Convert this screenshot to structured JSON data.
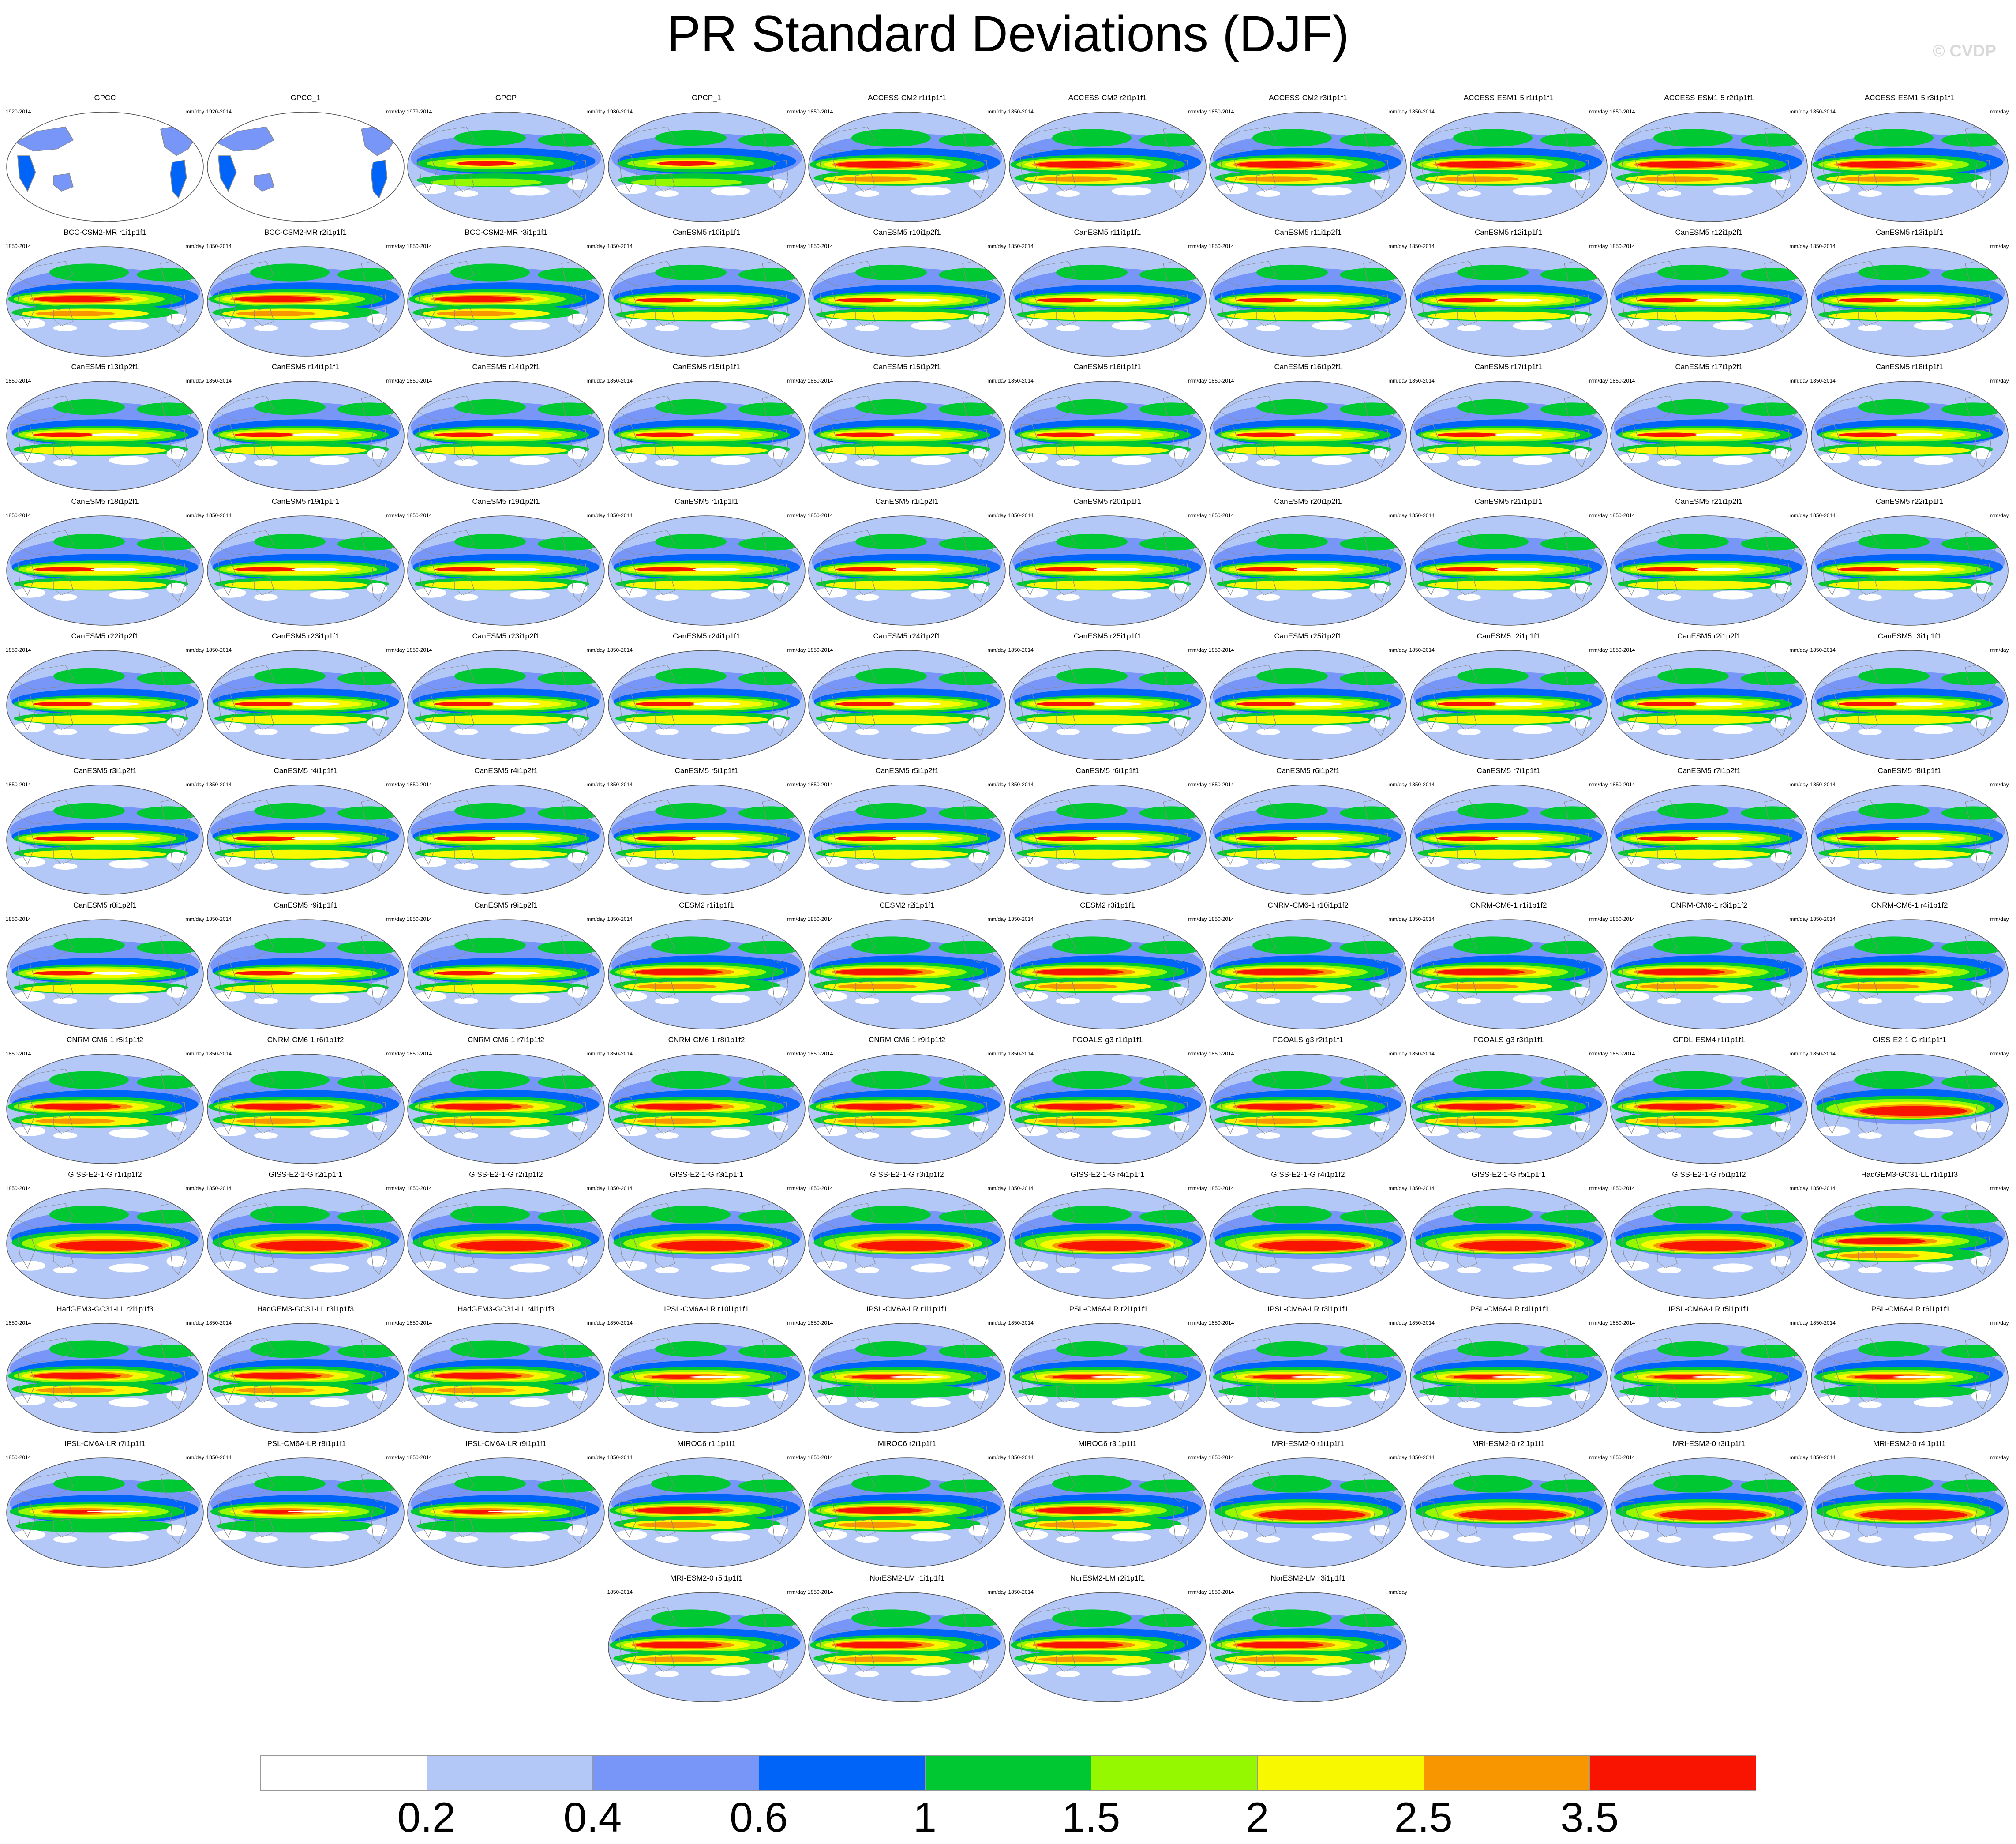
{
  "title": "PR Standard Deviations (DJF)",
  "watermark": "© CVDP",
  "colors": {
    "levels": [
      "#ffffff",
      "#b4c8f8",
      "#7896f8",
      "#0064f8",
      "#00c832",
      "#96f800",
      "#f8f800",
      "#f89600",
      "#f81400"
    ],
    "land_outline": "#888888",
    "map_edge": "#555555"
  },
  "chart_data": {
    "type": "heatmap",
    "title": "PR Standard Deviations (DJF)",
    "colorbar": {
      "tick_labels": [
        "0.2",
        "0.4",
        "0.6",
        "1",
        "1.5",
        "2",
        "2.5",
        "3.5"
      ],
      "bins": 9
    },
    "panels": [
      {
        "name": "GPCC",
        "period": "1920-2014",
        "unit": "mm/day",
        "style": "land"
      },
      {
        "name": "GPCC_1",
        "period": "1920-2014",
        "unit": "mm/day",
        "style": "land"
      },
      {
        "name": "GPCP",
        "period": "1979-2014",
        "unit": "mm/day",
        "style": "obs"
      },
      {
        "name": "GPCP_1",
        "period": "1980-2014",
        "unit": "mm/day",
        "style": "obs"
      },
      {
        "name": "ACCESS-CM2 r1i1p1f1",
        "period": "1850-2014",
        "unit": "mm/day",
        "style": "strong"
      },
      {
        "name": "ACCESS-CM2 r2i1p1f1",
        "period": "1850-2014",
        "unit": "mm/day",
        "style": "strong"
      },
      {
        "name": "ACCESS-CM2 r3i1p1f1",
        "period": "1850-2014",
        "unit": "mm/day",
        "style": "strong"
      },
      {
        "name": "ACCESS-ESM1-5 r1i1p1f1",
        "period": "1850-2014",
        "unit": "mm/day",
        "style": "strong"
      },
      {
        "name": "ACCESS-ESM1-5 r2i1p1f1",
        "period": "1850-2014",
        "unit": "mm/day",
        "style": "strong"
      },
      {
        "name": "ACCESS-ESM1-5 r3i1p1f1",
        "period": "1850-2014",
        "unit": "mm/day",
        "style": "strong"
      },
      {
        "name": "BCC-CSM2-MR r1i1p1f1",
        "period": "1850-2014",
        "unit": "mm/day",
        "style": "strong"
      },
      {
        "name": "BCC-CSM2-MR r2i1p1f1",
        "period": "1850-2014",
        "unit": "mm/day",
        "style": "strong"
      },
      {
        "name": "BCC-CSM2-MR r3i1p1f1",
        "period": "1850-2014",
        "unit": "mm/day",
        "style": "strong"
      },
      {
        "name": "CanESM5 r10i1p1f1",
        "period": "1850-2014",
        "unit": "mm/day",
        "style": "canesm"
      },
      {
        "name": "CanESM5 r10i1p2f1",
        "period": "1850-2014",
        "unit": "mm/day",
        "style": "canesm"
      },
      {
        "name": "CanESM5 r11i1p1f1",
        "period": "1850-2014",
        "unit": "mm/day",
        "style": "canesm"
      },
      {
        "name": "CanESM5 r11i1p2f1",
        "period": "1850-2014",
        "unit": "mm/day",
        "style": "canesm"
      },
      {
        "name": "CanESM5 r12i1p1f1",
        "period": "1850-2014",
        "unit": "mm/day",
        "style": "canesm"
      },
      {
        "name": "CanESM5 r12i1p2f1",
        "period": "1850-2014",
        "unit": "mm/day",
        "style": "canesm"
      },
      {
        "name": "CanESM5 r13i1p1f1",
        "period": "1850-2014",
        "unit": "mm/day",
        "style": "canesm"
      },
      {
        "name": "CanESM5 r13i1p2f1",
        "period": "1850-2014",
        "unit": "mm/day",
        "style": "canesm"
      },
      {
        "name": "CanESM5 r14i1p1f1",
        "period": "1850-2014",
        "unit": "mm/day",
        "style": "canesm"
      },
      {
        "name": "CanESM5 r14i1p2f1",
        "period": "1850-2014",
        "unit": "mm/day",
        "style": "canesm"
      },
      {
        "name": "CanESM5 r15i1p1f1",
        "period": "1850-2014",
        "unit": "mm/day",
        "style": "canesm"
      },
      {
        "name": "CanESM5 r15i1p2f1",
        "period": "1850-2014",
        "unit": "mm/day",
        "style": "canesm"
      },
      {
        "name": "CanESM5 r16i1p1f1",
        "period": "1850-2014",
        "unit": "mm/day",
        "style": "canesm"
      },
      {
        "name": "CanESM5 r16i1p2f1",
        "period": "1850-2014",
        "unit": "mm/day",
        "style": "canesm"
      },
      {
        "name": "CanESM5 r17i1p1f1",
        "period": "1850-2014",
        "unit": "mm/day",
        "style": "canesm"
      },
      {
        "name": "CanESM5 r17i1p2f1",
        "period": "1850-2014",
        "unit": "mm/day",
        "style": "canesm"
      },
      {
        "name": "CanESM5 r18i1p1f1",
        "period": "1850-2014",
        "unit": "mm/day",
        "style": "canesm"
      },
      {
        "name": "CanESM5 r18i1p2f1",
        "period": "1850-2014",
        "unit": "mm/day",
        "style": "canesm"
      },
      {
        "name": "CanESM5 r19i1p1f1",
        "period": "1850-2014",
        "unit": "mm/day",
        "style": "canesm"
      },
      {
        "name": "CanESM5 r19i1p2f1",
        "period": "1850-2014",
        "unit": "mm/day",
        "style": "canesm"
      },
      {
        "name": "CanESM5 r1i1p1f1",
        "period": "1850-2014",
        "unit": "mm/day",
        "style": "canesm"
      },
      {
        "name": "CanESM5 r1i1p2f1",
        "period": "1850-2014",
        "unit": "mm/day",
        "style": "canesm"
      },
      {
        "name": "CanESM5 r20i1p1f1",
        "period": "1850-2014",
        "unit": "mm/day",
        "style": "canesm"
      },
      {
        "name": "CanESM5 r20i1p2f1",
        "period": "1850-2014",
        "unit": "mm/day",
        "style": "canesm"
      },
      {
        "name": "CanESM5 r21i1p1f1",
        "period": "1850-2014",
        "unit": "mm/day",
        "style": "canesm"
      },
      {
        "name": "CanESM5 r21i1p2f1",
        "period": "1850-2014",
        "unit": "mm/day",
        "style": "canesm"
      },
      {
        "name": "CanESM5 r22i1p1f1",
        "period": "1850-2014",
        "unit": "mm/day",
        "style": "canesm"
      },
      {
        "name": "CanESM5 r22i1p2f1",
        "period": "1850-2014",
        "unit": "mm/day",
        "style": "canesm"
      },
      {
        "name": "CanESM5 r23i1p1f1",
        "period": "1850-2014",
        "unit": "mm/day",
        "style": "canesm"
      },
      {
        "name": "CanESM5 r23i1p2f1",
        "period": "1850-2014",
        "unit": "mm/day",
        "style": "canesm"
      },
      {
        "name": "CanESM5 r24i1p1f1",
        "period": "1850-2014",
        "unit": "mm/day",
        "style": "canesm"
      },
      {
        "name": "CanESM5 r24i1p2f1",
        "period": "1850-2014",
        "unit": "mm/day",
        "style": "canesm"
      },
      {
        "name": "CanESM5 r25i1p1f1",
        "period": "1850-2014",
        "unit": "mm/day",
        "style": "canesm"
      },
      {
        "name": "CanESM5 r25i1p2f1",
        "period": "1850-2014",
        "unit": "mm/day",
        "style": "canesm"
      },
      {
        "name": "CanESM5 r2i1p1f1",
        "period": "1850-2014",
        "unit": "mm/day",
        "style": "canesm"
      },
      {
        "name": "CanESM5 r2i1p2f1",
        "period": "1850-2014",
        "unit": "mm/day",
        "style": "canesm"
      },
      {
        "name": "CanESM5 r3i1p1f1",
        "period": "1850-2014",
        "unit": "mm/day",
        "style": "canesm"
      },
      {
        "name": "CanESM5 r3i1p2f1",
        "period": "1850-2014",
        "unit": "mm/day",
        "style": "canesm"
      },
      {
        "name": "CanESM5 r4i1p1f1",
        "period": "1850-2014",
        "unit": "mm/day",
        "style": "canesm"
      },
      {
        "name": "CanESM5 r4i1p2f1",
        "period": "1850-2014",
        "unit": "mm/day",
        "style": "canesm"
      },
      {
        "name": "CanESM5 r5i1p1f1",
        "period": "1850-2014",
        "unit": "mm/day",
        "style": "canesm"
      },
      {
        "name": "CanESM5 r5i1p2f1",
        "period": "1850-2014",
        "unit": "mm/day",
        "style": "canesm"
      },
      {
        "name": "CanESM5 r6i1p1f1",
        "period": "1850-2014",
        "unit": "mm/day",
        "style": "canesm"
      },
      {
        "name": "CanESM5 r6i1p2f1",
        "period": "1850-2014",
        "unit": "mm/day",
        "style": "canesm"
      },
      {
        "name": "CanESM5 r7i1p1f1",
        "period": "1850-2014",
        "unit": "mm/day",
        "style": "canesm"
      },
      {
        "name": "CanESM5 r7i1p2f1",
        "period": "1850-2014",
        "unit": "mm/day",
        "style": "canesm"
      },
      {
        "name": "CanESM5 r8i1p1f1",
        "period": "1850-2014",
        "unit": "mm/day",
        "style": "canesm"
      },
      {
        "name": "CanESM5 r8i1p2f1",
        "period": "1850-2014",
        "unit": "mm/day",
        "style": "canesm"
      },
      {
        "name": "CanESM5 r9i1p1f1",
        "period": "1850-2014",
        "unit": "mm/day",
        "style": "canesm"
      },
      {
        "name": "CanESM5 r9i1p2f1",
        "period": "1850-2014",
        "unit": "mm/day",
        "style": "canesm"
      },
      {
        "name": "CESM2 r1i1p1f1",
        "period": "1850-2014",
        "unit": "mm/day",
        "style": "strong"
      },
      {
        "name": "CESM2 r2i1p1f1",
        "period": "1850-2014",
        "unit": "mm/day",
        "style": "strong"
      },
      {
        "name": "CESM2 r3i1p1f1",
        "period": "1850-2014",
        "unit": "mm/day",
        "style": "strong"
      },
      {
        "name": "CNRM-CM6-1 r10i1p1f2",
        "period": "1850-2014",
        "unit": "mm/day",
        "style": "strong"
      },
      {
        "name": "CNRM-CM6-1 r1i1p1f2",
        "period": "1850-2014",
        "unit": "mm/day",
        "style": "strong"
      },
      {
        "name": "CNRM-CM6-1 r3i1p1f2",
        "period": "1850-2014",
        "unit": "mm/day",
        "style": "strong"
      },
      {
        "name": "CNRM-CM6-1 r4i1p1f2",
        "period": "1850-2014",
        "unit": "mm/day",
        "style": "strong"
      },
      {
        "name": "CNRM-CM6-1 r5i1p1f2",
        "period": "1850-2014",
        "unit": "mm/day",
        "style": "strong"
      },
      {
        "name": "CNRM-CM6-1 r6i1p1f2",
        "period": "1850-2014",
        "unit": "mm/day",
        "style": "strong"
      },
      {
        "name": "CNRM-CM6-1 r7i1p1f2",
        "period": "1850-2014",
        "unit": "mm/day",
        "style": "strong"
      },
      {
        "name": "CNRM-CM6-1 r8i1p1f2",
        "period": "1850-2014",
        "unit": "mm/day",
        "style": "strong"
      },
      {
        "name": "CNRM-CM6-1 r9i1p1f2",
        "period": "1850-2014",
        "unit": "mm/day",
        "style": "strong"
      },
      {
        "name": "FGOALS-g3 r1i1p1f1",
        "period": "1850-2014",
        "unit": "mm/day",
        "style": "strong"
      },
      {
        "name": "FGOALS-g3 r2i1p1f1",
        "period": "1850-2014",
        "unit": "mm/day",
        "style": "strong"
      },
      {
        "name": "FGOALS-g3 r3i1p1f1",
        "period": "1850-2014",
        "unit": "mm/day",
        "style": "strong"
      },
      {
        "name": "GFDL-ESM4 r1i1p1f1",
        "period": "1850-2014",
        "unit": "mm/day",
        "style": "strong"
      },
      {
        "name": "GISS-E2-1-G r1i1p1f1",
        "period": "1850-2014",
        "unit": "mm/day",
        "style": "giss"
      },
      {
        "name": "GISS-E2-1-G r1i1p1f2",
        "period": "1850-2014",
        "unit": "mm/day",
        "style": "giss"
      },
      {
        "name": "GISS-E2-1-G r2i1p1f1",
        "period": "1850-2014",
        "unit": "mm/day",
        "style": "giss"
      },
      {
        "name": "GISS-E2-1-G r2i1p1f2",
        "period": "1850-2014",
        "unit": "mm/day",
        "style": "giss"
      },
      {
        "name": "GISS-E2-1-G r3i1p1f1",
        "period": "1850-2014",
        "unit": "mm/day",
        "style": "giss"
      },
      {
        "name": "GISS-E2-1-G r3i1p1f2",
        "period": "1850-2014",
        "unit": "mm/day",
        "style": "giss"
      },
      {
        "name": "GISS-E2-1-G r4i1p1f1",
        "period": "1850-2014",
        "unit": "mm/day",
        "style": "giss"
      },
      {
        "name": "GISS-E2-1-G r4i1p1f2",
        "period": "1850-2014",
        "unit": "mm/day",
        "style": "giss"
      },
      {
        "name": "GISS-E2-1-G r5i1p1f1",
        "period": "1850-2014",
        "unit": "mm/day",
        "style": "giss"
      },
      {
        "name": "GISS-E2-1-G r5i1p1f2",
        "period": "1850-2014",
        "unit": "mm/day",
        "style": "giss"
      },
      {
        "name": "HadGEM3-GC31-LL r1i1p1f3",
        "period": "1850-2014",
        "unit": "mm/day",
        "style": "strong"
      },
      {
        "name": "HadGEM3-GC31-LL r2i1p1f3",
        "period": "1850-2014",
        "unit": "mm/day",
        "style": "strong"
      },
      {
        "name": "HadGEM3-GC31-LL r3i1p1f3",
        "period": "1850-2014",
        "unit": "mm/day",
        "style": "strong"
      },
      {
        "name": "HadGEM3-GC31-LL r4i1p1f3",
        "period": "1850-2014",
        "unit": "mm/day",
        "style": "strong"
      },
      {
        "name": "IPSL-CM6A-LR r10i1p1f1",
        "period": "1850-2014",
        "unit": "mm/day",
        "style": "ipsl"
      },
      {
        "name": "IPSL-CM6A-LR r1i1p1f1",
        "period": "1850-2014",
        "unit": "mm/day",
        "style": "ipsl"
      },
      {
        "name": "IPSL-CM6A-LR r2i1p1f1",
        "period": "1850-2014",
        "unit": "mm/day",
        "style": "ipsl"
      },
      {
        "name": "IPSL-CM6A-LR r3i1p1f1",
        "period": "1850-2014",
        "unit": "mm/day",
        "style": "ipsl"
      },
      {
        "name": "IPSL-CM6A-LR r4i1p1f1",
        "period": "1850-2014",
        "unit": "mm/day",
        "style": "ipsl"
      },
      {
        "name": "IPSL-CM6A-LR r5i1p1f1",
        "period": "1850-2014",
        "unit": "mm/day",
        "style": "ipsl"
      },
      {
        "name": "IPSL-CM6A-LR r6i1p1f1",
        "period": "1850-2014",
        "unit": "mm/day",
        "style": "ipsl"
      },
      {
        "name": "IPSL-CM6A-LR r7i1p1f1",
        "period": "1850-2014",
        "unit": "mm/day",
        "style": "ipsl"
      },
      {
        "name": "IPSL-CM6A-LR r8i1p1f1",
        "period": "1850-2014",
        "unit": "mm/day",
        "style": "ipsl"
      },
      {
        "name": "IPSL-CM6A-LR r9i1p1f1",
        "period": "1850-2014",
        "unit": "mm/day",
        "style": "ipsl"
      },
      {
        "name": "MIROC6 r1i1p1f1",
        "period": "1850-2014",
        "unit": "mm/day",
        "style": "strong"
      },
      {
        "name": "MIROC6 r2i1p1f1",
        "period": "1850-2014",
        "unit": "mm/day",
        "style": "strong"
      },
      {
        "name": "MIROC6 r3i1p1f1",
        "period": "1850-2014",
        "unit": "mm/day",
        "style": "strong"
      },
      {
        "name": "MRI-ESM2-0 r1i1p1f1",
        "period": "1850-2014",
        "unit": "mm/day",
        "style": "giss"
      },
      {
        "name": "MRI-ESM2-0 r2i1p1f1",
        "period": "1850-2014",
        "unit": "mm/day",
        "style": "giss"
      },
      {
        "name": "MRI-ESM2-0 r3i1p1f1",
        "period": "1850-2014",
        "unit": "mm/day",
        "style": "giss"
      },
      {
        "name": "MRI-ESM2-0 r4i1p1f1",
        "period": "1850-2014",
        "unit": "mm/day",
        "style": "giss"
      },
      {
        "name": "MRI-ESM2-0 r5i1p1f1",
        "period": "1850-2014",
        "unit": "mm/day",
        "style": "strong"
      },
      {
        "name": "NorESM2-LM r1i1p1f1",
        "period": "1850-2014",
        "unit": "mm/day",
        "style": "strong"
      },
      {
        "name": "NorESM2-LM r2i1p1f1",
        "period": "1850-2014",
        "unit": "mm/day",
        "style": "strong"
      },
      {
        "name": "NorESM2-LM r3i1p1f1",
        "period": "1850-2014",
        "unit": "mm/day",
        "style": "strong"
      }
    ]
  }
}
